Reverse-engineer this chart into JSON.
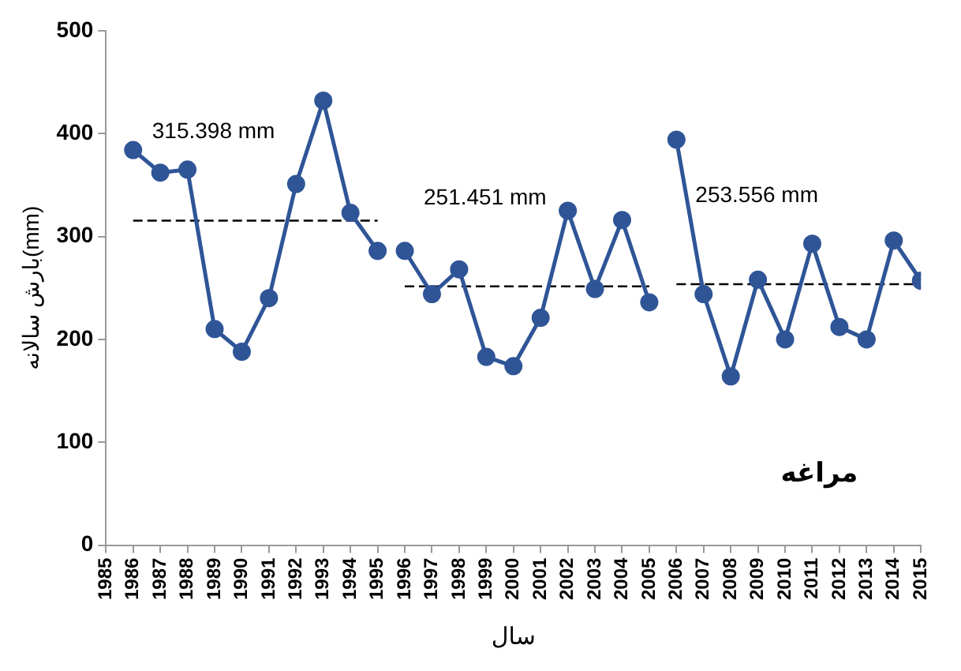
{
  "chart_data": {
    "type": "line",
    "ylabel": "بارش سالانه(mm)",
    "xlabel": "سال",
    "xlim": [
      1985,
      2015
    ],
    "xticks": [
      1985,
      1986,
      1987,
      1988,
      1989,
      1990,
      1991,
      1992,
      1993,
      1994,
      1995,
      1996,
      1997,
      1998,
      1999,
      2000,
      2001,
      2002,
      2003,
      2004,
      2005,
      2006,
      2007,
      2008,
      2009,
      2010,
      2011,
      2012,
      2013,
      2014,
      2015
    ],
    "ylim": [
      0,
      500
    ],
    "yticks": [
      0,
      100,
      200,
      300,
      400,
      500
    ],
    "grid": false,
    "legend": false,
    "marker": "circle",
    "line_style": "solid",
    "series": [
      {
        "color": "#2f5597",
        "x": [
          1986,
          1987,
          1988,
          1989,
          1990,
          1991,
          1992,
          1993,
          1994,
          1995
        ],
        "values": [
          384,
          362,
          365,
          210,
          188,
          240,
          351,
          432,
          323,
          286
        ]
      },
      {
        "color": "#2f5597",
        "x": [
          1996,
          1997,
          1998,
          1999,
          2000,
          2001,
          2002,
          2003,
          2004,
          2005
        ],
        "values": [
          286,
          244,
          268,
          183,
          174,
          221,
          325,
          249,
          316,
          236
        ]
      },
      {
        "color": "#2f5597",
        "x": [
          2006,
          2007,
          2008,
          2009,
          2010,
          2011,
          2012,
          2013,
          2014,
          2015
        ],
        "values": [
          394,
          244,
          164,
          258,
          200,
          293,
          212,
          200,
          296,
          257
        ]
      },
      {
        "type": "line",
        "color": "#000000",
        "marker": "none",
        "line_style": "dashed",
        "x": [
          1986,
          1995
        ],
        "values": [
          315.398,
          315.398
        ]
      },
      {
        "type": "line",
        "color": "#000000",
        "marker": "none",
        "line_style": "dashed",
        "x": [
          1996,
          2005
        ],
        "values": [
          251.451,
          251.451
        ]
      },
      {
        "type": "line",
        "color": "#000000",
        "marker": "none",
        "line_style": "dashed",
        "x": [
          2006,
          2015
        ],
        "values": [
          253.556,
          253.556
        ]
      }
    ],
    "annotations": [
      "315.398 mm",
      "251.451 mm",
      "253.556 mm",
      "مراغه"
    ]
  }
}
